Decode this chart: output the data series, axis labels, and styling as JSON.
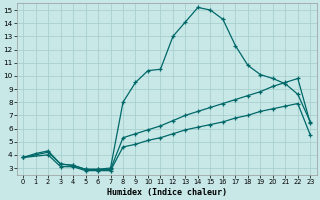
{
  "title": "",
  "xlabel": "Humidex (Indice chaleur)",
  "bg_color": "#c8e8e8",
  "grid_color": "#a8d0d0",
  "line_color": "#006868",
  "xlim": [
    -0.5,
    23.5
  ],
  "ylim": [
    2.5,
    15.5
  ],
  "xticks": [
    0,
    1,
    2,
    3,
    4,
    5,
    6,
    7,
    8,
    9,
    10,
    11,
    12,
    13,
    14,
    15,
    16,
    17,
    18,
    19,
    20,
    21,
    22,
    23
  ],
  "yticks": [
    3,
    4,
    5,
    6,
    7,
    8,
    9,
    10,
    11,
    12,
    13,
    14,
    15
  ],
  "line1_x": [
    0,
    1,
    2,
    3,
    4,
    5,
    6,
    7,
    8,
    9,
    10,
    11,
    12,
    13,
    14,
    15,
    16,
    17,
    18,
    19,
    20,
    21,
    22,
    23
  ],
  "line1_y": [
    3.8,
    4.1,
    4.3,
    3.3,
    3.2,
    2.9,
    2.9,
    3.0,
    8.0,
    9.5,
    10.4,
    10.5,
    13.0,
    14.1,
    15.2,
    15.0,
    14.3,
    12.3,
    10.8,
    10.1,
    9.8,
    9.4,
    8.6,
    6.5
  ],
  "line2_x": [
    0,
    2,
    3,
    4,
    5,
    6,
    7,
    8,
    9,
    10,
    11,
    12,
    13,
    14,
    15,
    16,
    17,
    18,
    19,
    20,
    21,
    22,
    23
  ],
  "line2_y": [
    3.8,
    4.2,
    3.3,
    3.2,
    2.9,
    2.9,
    2.9,
    5.3,
    5.6,
    5.9,
    6.2,
    6.6,
    7.0,
    7.3,
    7.6,
    7.9,
    8.2,
    8.5,
    8.8,
    9.2,
    9.5,
    9.8,
    6.4
  ],
  "line3_x": [
    0,
    2,
    3,
    4,
    5,
    6,
    7,
    8,
    9,
    10,
    11,
    12,
    13,
    14,
    15,
    16,
    17,
    18,
    19,
    20,
    21,
    22,
    23
  ],
  "line3_y": [
    3.8,
    4.0,
    3.1,
    3.1,
    2.8,
    2.8,
    2.8,
    4.6,
    4.8,
    5.1,
    5.3,
    5.6,
    5.9,
    6.1,
    6.3,
    6.5,
    6.8,
    7.0,
    7.3,
    7.5,
    7.7,
    7.9,
    5.5
  ]
}
